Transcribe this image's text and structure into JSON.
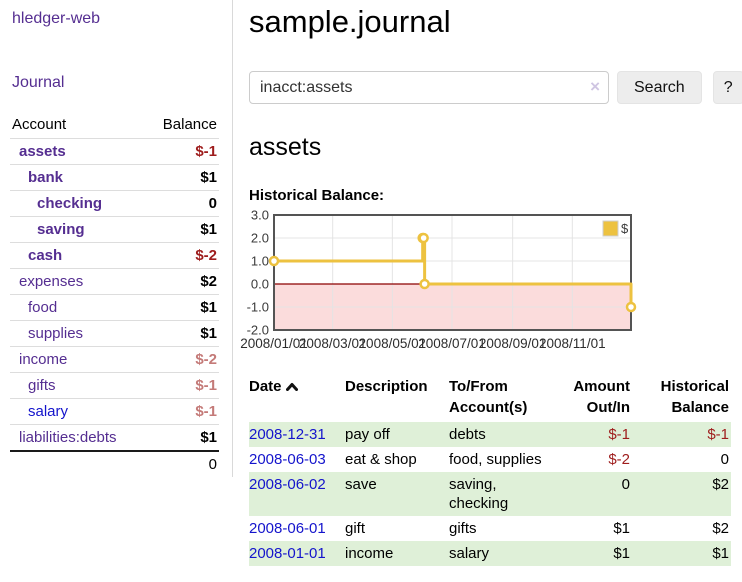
{
  "app": {
    "brand": "hledger-web"
  },
  "sidebar": {
    "journal_label": "Journal",
    "accounts": {
      "col_account": "Account",
      "col_balance": "Balance",
      "rows": [
        {
          "name": "assets",
          "depth": 1,
          "bold": true,
          "link_style": "purple",
          "balance": "$-1"
        },
        {
          "name": "bank",
          "depth": 2,
          "bold": true,
          "link_style": "purple",
          "balance": "$1"
        },
        {
          "name": "checking",
          "depth": 3,
          "bold": true,
          "link_style": "purple",
          "balance": "0"
        },
        {
          "name": "saving",
          "depth": 3,
          "bold": true,
          "link_style": "purple",
          "balance": "$1"
        },
        {
          "name": "cash",
          "depth": 2,
          "bold": true,
          "link_style": "purple",
          "balance": "$-2"
        },
        {
          "name": "expenses",
          "depth": 1,
          "bold": false,
          "link_style": "purple",
          "balance": "$2"
        },
        {
          "name": "food",
          "depth": 2,
          "bold": false,
          "link_style": "purple",
          "balance": "$1"
        },
        {
          "name": "supplies",
          "depth": 2,
          "bold": false,
          "link_style": "purple",
          "balance": "$1"
        },
        {
          "name": "income",
          "depth": 1,
          "bold": false,
          "link_style": "purple",
          "balance": "$-2"
        },
        {
          "name": "gifts",
          "depth": 2,
          "bold": false,
          "link_style": "purple",
          "balance": "$-1"
        },
        {
          "name": "salary",
          "depth": 2,
          "bold": false,
          "link_style": "blue",
          "balance": "$-1"
        },
        {
          "name": "liabilities:debts",
          "depth": 1,
          "bold": false,
          "link_style": "purple",
          "balance": "$1"
        }
      ],
      "total": "0"
    }
  },
  "main": {
    "title": "sample.journal",
    "search": {
      "value": "inacct:assets",
      "clear_icon": "×",
      "search_button": "Search",
      "help_button": "?"
    },
    "account_heading": "assets",
    "section_label": "Historical Balance:"
  },
  "chart_data": {
    "type": "line",
    "title": "Historical Balance:",
    "step": true,
    "series": [
      {
        "name": "$",
        "color": "#edc240",
        "points": [
          [
            "2008-01-01",
            1
          ],
          [
            "2008-06-01",
            2
          ],
          [
            "2008-06-02",
            2
          ],
          [
            "2008-06-03",
            0
          ],
          [
            "2008-12-31",
            -1
          ]
        ]
      }
    ],
    "x_range": [
      "2008-01-01",
      "2008-12-31"
    ],
    "ylim": [
      -2,
      3
    ],
    "y_ticks": [
      "3.0",
      "2.0",
      "1.0",
      "0.0",
      "-1.0",
      "-2.0"
    ],
    "y_tick_values": [
      3,
      2,
      1,
      0,
      -1,
      -2
    ],
    "x_ticks": [
      "2008/01/01",
      "2008/03/01",
      "2008/05/01",
      "2008/07/01",
      "2008/09/01",
      "2008/11/01"
    ],
    "x_tick_dates": [
      "2008-01-01",
      "2008-03-01",
      "2008-05-01",
      "2008-07-01",
      "2008-09-01",
      "2008-11-01"
    ],
    "legend": {
      "label": "$",
      "position": "top-right"
    },
    "grid": true,
    "negative_region_color": "#fbdcdc",
    "zero_line_color": "#8b0000"
  },
  "register": {
    "columns": [
      {
        "label": "Date",
        "sort": "asc",
        "align": "left"
      },
      {
        "label": "Description",
        "align": "left"
      },
      {
        "label": "To/From Account(s)",
        "align": "left"
      },
      {
        "label": "Amount Out/In",
        "align": "right"
      },
      {
        "label": "Historical Balance",
        "align": "right"
      }
    ],
    "rows": [
      {
        "date": "2008-12-31",
        "description": "pay off",
        "accounts": "debts",
        "amount": "$-1",
        "balance": "$-1"
      },
      {
        "date": "2008-06-03",
        "description": "eat & shop",
        "accounts": "food, supplies",
        "amount": "$-2",
        "balance": "0"
      },
      {
        "date": "2008-06-02",
        "description": "save",
        "accounts": "saving, checking",
        "amount": "0",
        "balance": "$2"
      },
      {
        "date": "2008-06-01",
        "description": "gift",
        "accounts": "gifts",
        "amount": "$1",
        "balance": "$2"
      },
      {
        "date": "2008-01-01",
        "description": "income",
        "accounts": "salary",
        "amount": "$1",
        "balance": "$1"
      }
    ]
  },
  "colors": {
    "accent_purple": "#552e91",
    "link_blue": "#1414cc",
    "negative_strong": "#9e1c1c",
    "negative_soft": "#c47a78",
    "row_shade_green": "#dff0d8",
    "chart_gold": "#edc240",
    "chart_border": "#545454",
    "grid_line": "#e4e4e4"
  }
}
